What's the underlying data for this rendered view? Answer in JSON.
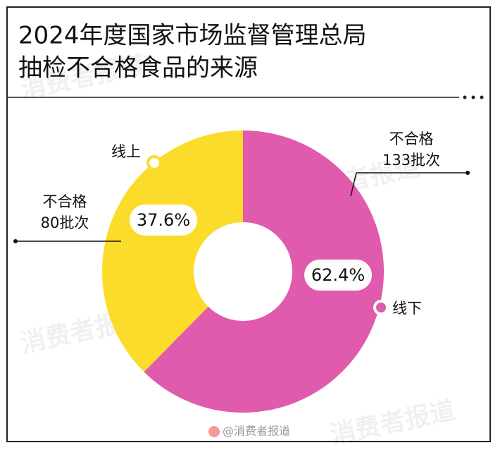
{
  "chart_data": {
    "type": "donut",
    "title": [
      "2024年度国家市场监督管理总局",
      "抽检不合格食品的来源"
    ],
    "categories": [
      "线上",
      "线下"
    ],
    "values": [
      37.6,
      62.4
    ],
    "value_labels": [
      "37.6%",
      "62.4%"
    ],
    "colors": [
      "#fcdc2a",
      "#e05aad"
    ],
    "annotations": [
      [
        "不合格",
        "80批次"
      ],
      [
        "不合格",
        "133批次"
      ]
    ],
    "watermark": "消费者报道",
    "credit": "@消费者报道"
  }
}
